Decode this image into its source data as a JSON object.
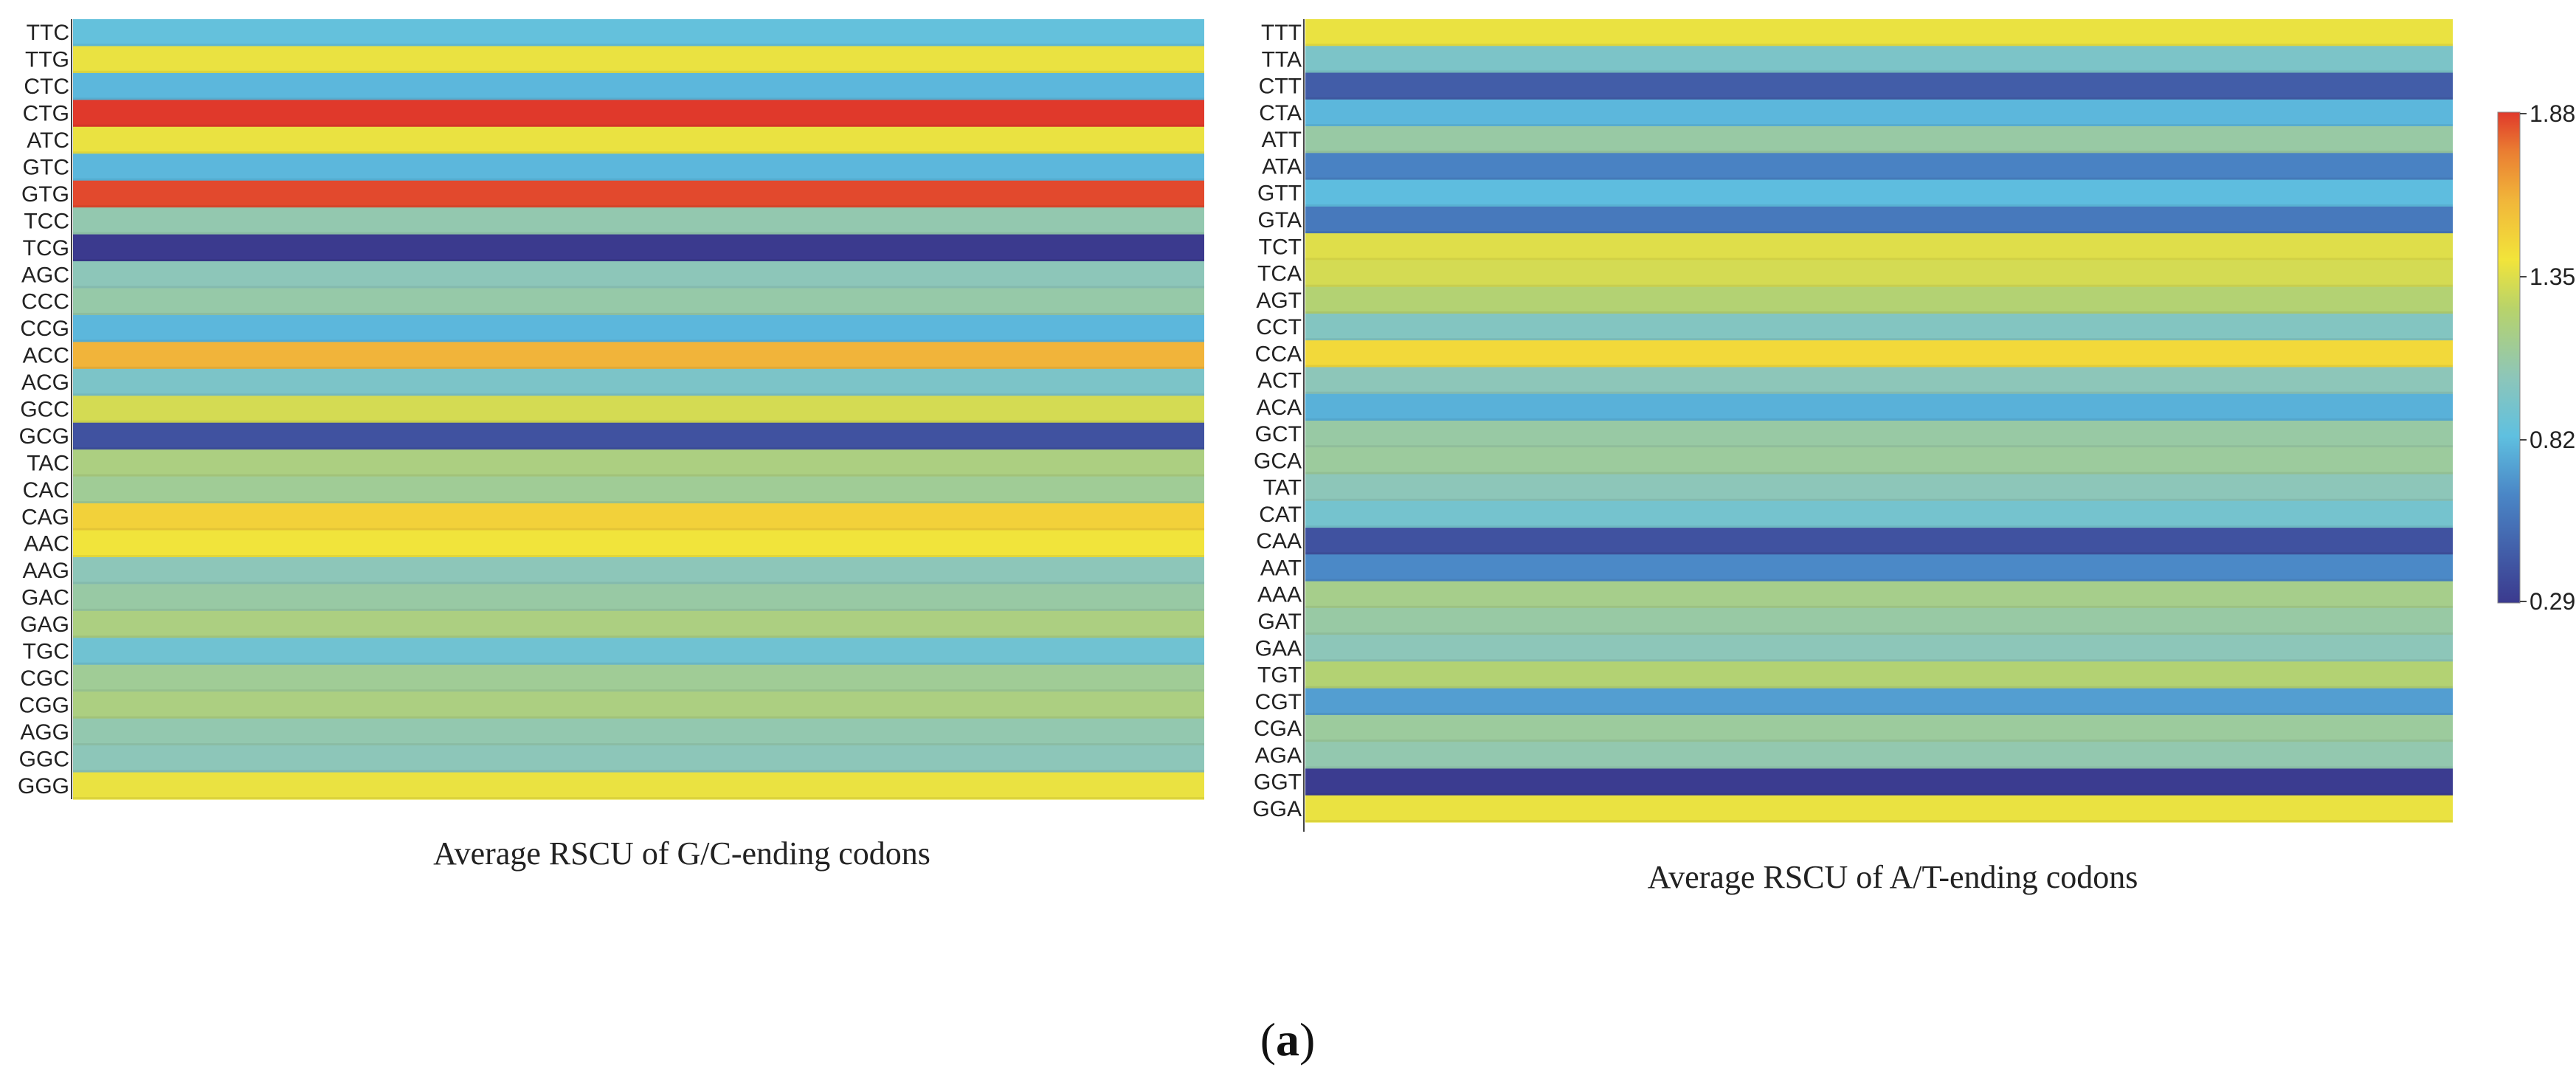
{
  "panel_label": {
    "open": "(",
    "letter": "a",
    "close": ")"
  },
  "colorbar": {
    "ticks": [
      "1.88",
      "1.35",
      "0.82",
      "0.29"
    ],
    "min": 0.29,
    "max": 1.88
  },
  "chart_data": [
    {
      "type": "heatmap",
      "title": "Average RSCU of G/C-ending codons",
      "value_range": [
        0.29,
        1.88
      ],
      "rows": [
        "TTC",
        "TTG",
        "CTC",
        "CTG",
        "ATC",
        "GTC",
        "GTG",
        "TCC",
        "TCG",
        "AGC",
        "CCC",
        "CCG",
        "ACC",
        "ACG",
        "GCC",
        "GCG",
        "TAC",
        "CAC",
        "CAG",
        "AAC",
        "AAG",
        "GAC",
        "GAG",
        "TGC",
        "CGC",
        "CGG",
        "AGG",
        "GGC",
        "GGG"
      ],
      "values": [
        0.85,
        1.38,
        0.8,
        1.88,
        1.38,
        0.8,
        1.85,
        1.05,
        0.29,
        1.02,
        1.07,
        0.8,
        1.6,
        0.95,
        1.32,
        0.4,
        1.18,
        1.12,
        1.48,
        1.4,
        1.02,
        1.08,
        1.18,
        0.9,
        1.12,
        1.18,
        1.05,
        1.02,
        1.38
      ]
    },
    {
      "type": "heatmap",
      "title": "Average RSCU of A/T-ending codons",
      "value_range": [
        0.29,
        1.88
      ],
      "rows": [
        "TTT",
        "TTA",
        "CTT",
        "CTA",
        "ATT",
        "ATA",
        "GTT",
        "GTA",
        "TCT",
        "TCA",
        "AGT",
        "CCT",
        "CCA",
        "ACT",
        "ACA",
        "GCT",
        "GCA",
        "TAT",
        "CAT",
        "CAA",
        "AAT",
        "AAA",
        "GAT",
        "GAA",
        "TGT",
        "CGT",
        "CGA",
        "AGA",
        "GGT",
        "GGA"
      ],
      "values": [
        1.38,
        0.95,
        0.45,
        0.8,
        1.08,
        0.62,
        0.82,
        0.58,
        1.35,
        1.32,
        1.22,
        0.98,
        1.45,
        1.02,
        0.78,
        1.08,
        1.1,
        1.02,
        0.92,
        0.4,
        0.65,
        1.15,
        1.08,
        1.02,
        1.22,
        0.72,
        1.1,
        1.05,
        0.3,
        1.38
      ]
    }
  ]
}
